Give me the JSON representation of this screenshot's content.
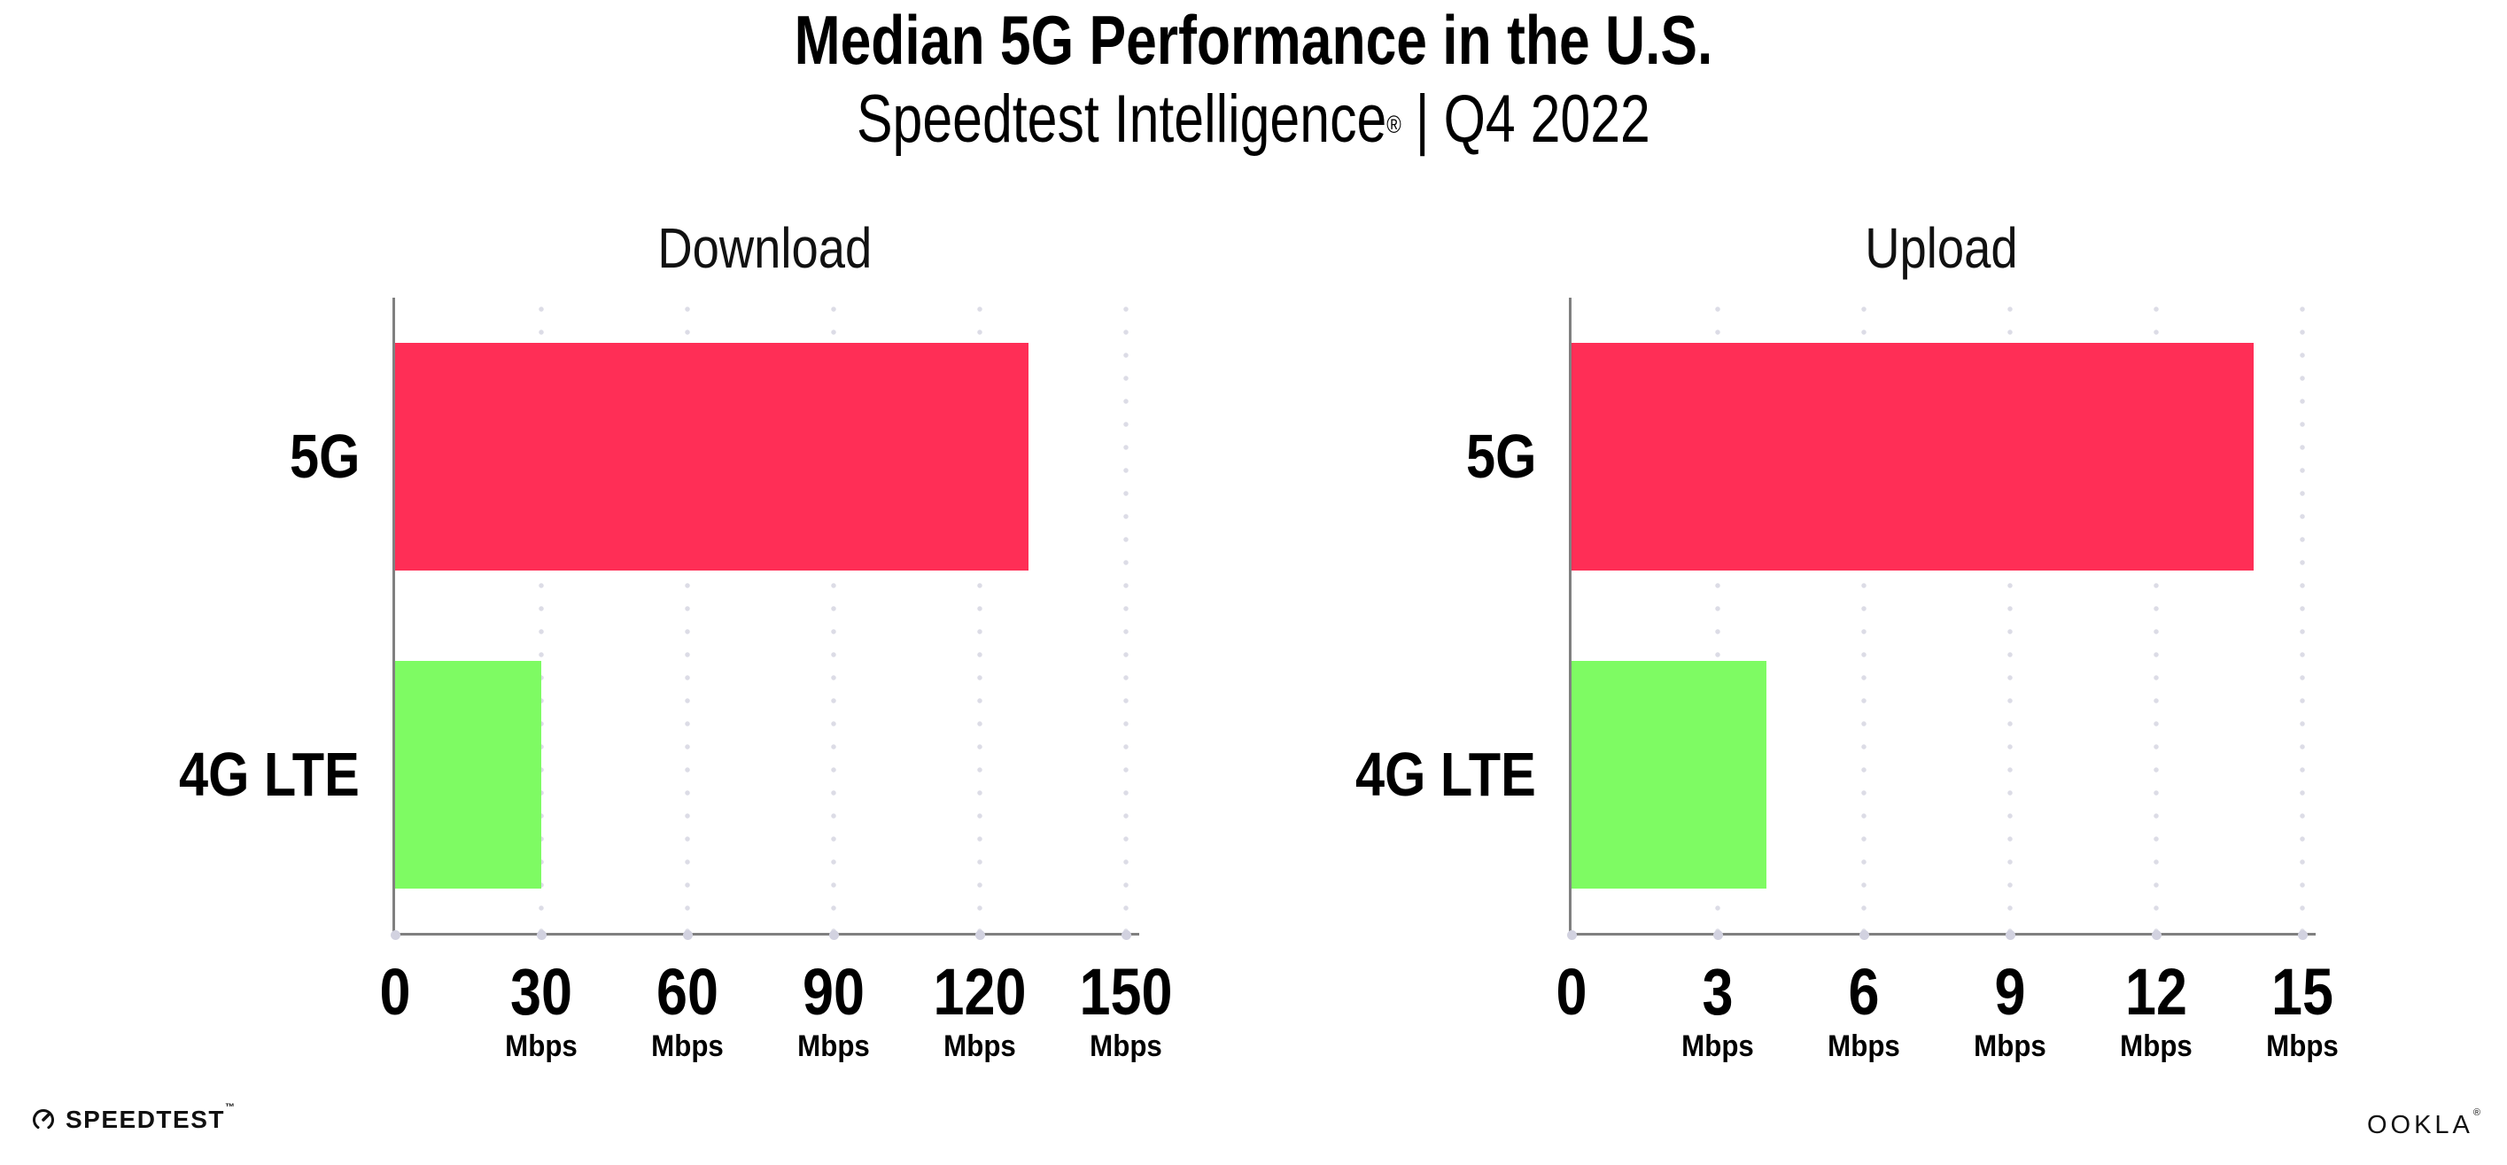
{
  "header": {
    "title": "Median 5G Performance in the U.S.",
    "subtitle_brand": "Speedtest Intelligence",
    "subtitle_reg": "®",
    "subtitle_sep": "|",
    "subtitle_period": "Q4 2022"
  },
  "chart_data": [
    {
      "type": "bar",
      "orientation": "horizontal",
      "title": "Download",
      "categories": [
        "5G",
        "4G LTE"
      ],
      "values": [
        130,
        30
      ],
      "unit": "Mbps",
      "ticks": [
        0,
        30,
        60,
        90,
        120,
        150
      ],
      "xlim": [
        0,
        152.7
      ],
      "grid": "vertical-dotted",
      "legend": "none"
    },
    {
      "type": "bar",
      "orientation": "horizontal",
      "title": "Upload",
      "categories": [
        "5G",
        "4G LTE"
      ],
      "values": [
        14,
        4
      ],
      "unit": "Mbps",
      "ticks": [
        0,
        3,
        6,
        9,
        12,
        15
      ],
      "xlim": [
        0,
        15.27
      ],
      "grid": "vertical-dotted",
      "legend": "none"
    }
  ],
  "colors": {
    "bars": [
      "#FF2E56",
      "#7EFB63"
    ],
    "bar_5g": "#FF2E56",
    "bar_4g_lte": "#7EFB63",
    "axis": "#808080",
    "grid_dot": "#DCDCE6",
    "tick_dot": "#D2D2E0",
    "title_text": "#000000",
    "chart_title_text": "#111111"
  },
  "footer": {
    "speedtest_label": "SPEEDTEST",
    "speedtest_tm": "™",
    "ookla_label": "OOKLA",
    "ookla_reg": "®"
  }
}
